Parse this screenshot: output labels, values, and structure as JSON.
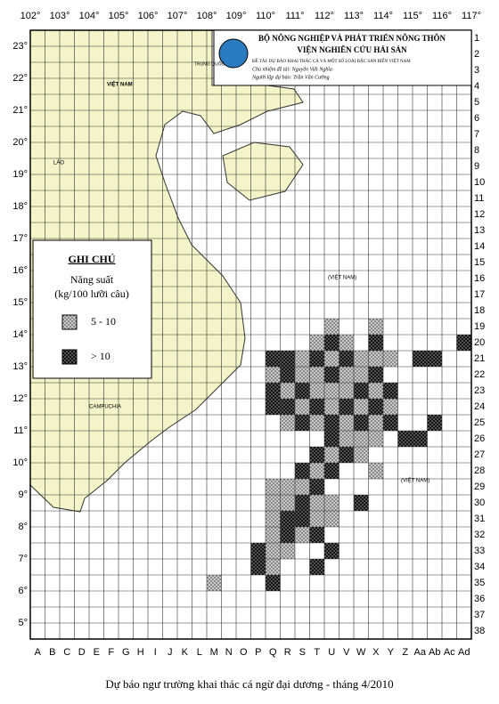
{
  "header": {
    "ministry": "BỘ NÔNG NGHIỆP VÀ PHÁT TRIỂN NÔNG THÔN",
    "institute": "VIỆN NGHIÊN CỨU HẢI SẢN",
    "project": "ĐỀ TÀI: DỰ BÁO KHAI THÁC CÁ VÀ MỘT SỐ LOÀI ĐẶC SẢN BIỂN VIỆT NAM",
    "leader": "Chủ nhiệm đề tài: Nguyễn Viết Nghĩa",
    "author": "Người lập dự báo: Trần Văn Cường"
  },
  "longitudes": [
    "102°",
    "103°",
    "104°",
    "105°",
    "106°",
    "107°",
    "108°",
    "109°",
    "110°",
    "111°",
    "112°",
    "113°",
    "114°",
    "115°",
    "116°",
    "117°"
  ],
  "latitudes": [
    "23°",
    "22°",
    "21°",
    "20°",
    "19°",
    "18°",
    "17°",
    "16°",
    "15°",
    "14°",
    "13°",
    "12°",
    "11°",
    "10°",
    "9°",
    "8°",
    "7°",
    "6°",
    "5°"
  ],
  "columns": [
    "A",
    "B",
    "C",
    "D",
    "E",
    "F",
    "G",
    "H",
    "I",
    "J",
    "K",
    "L",
    "M",
    "N",
    "O",
    "P",
    "Q",
    "R",
    "S",
    "T",
    "U",
    "V",
    "W",
    "X",
    "Y",
    "Z",
    "Aa",
    "Ab",
    "Ac",
    "Ad"
  ],
  "rows": [
    "1",
    "2",
    "3",
    "4",
    "5",
    "6",
    "7",
    "8",
    "9",
    "10",
    "11",
    "12",
    "13",
    "14",
    "15",
    "16",
    "17",
    "18",
    "19",
    "20",
    "21",
    "22",
    "23",
    "24",
    "25",
    "26",
    "27",
    "28",
    "29",
    "30",
    "31",
    "32",
    "33",
    "34",
    "35",
    "36",
    "37",
    "38"
  ],
  "places": [
    "TRUNG QUỐC",
    "VIỆT NAM",
    "LÀO",
    "CAMPUCHIA",
    "(VIỆT NAM)",
    "(VIỆT NAM)"
  ],
  "legend": {
    "title": "GHI CHÚ",
    "subtitle": "Năng suất",
    "unit": "(kg/100 lưỡi câu)",
    "items": [
      "5 - 10",
      "> 10"
    ]
  },
  "cells": {
    "19": "U:0 X:0",
    "20": "T:0 U:1 V:0 X:1 Ad:1",
    "21": "Q:1 R:1 S:0 T:1 U:0 V:1 W:0 X:0 Y:0 Aa:1 Ab:1",
    "22": "Q:0 R:1 S:0 T:0 U:1 V:0 W:0 X:1",
    "23": "Q:1 R:0 S:1 T:0 U:0 V:0 W:1 X:0 Y:1",
    "24": "Q:1 R:1 S:0 T:1 U:0 V:1 W:0 X:1 Y:0",
    "25": "R:0 S:1 T:0 U:1 V:0 W:1 X:0 Y:1 Ab:1",
    "26": "U:1 V:0 W:0 X:0 Z:1 Aa:1",
    "27": "T:1 U:0 V:1 W:0",
    "28": "S:1 T:0 U:1 X:0",
    "29": "Q:0 R:0 S:0 T:1",
    "30": "Q:0 R:0 S:1 T:0 U:0 W:1",
    "31": "Q:0 R:1 S:1 T:0 U:0",
    "32": "Q:0 R:1 S:0 T:1",
    "33": "P:1 Q:0 R:0 U:1",
    "34": "P:1 Q:0 T:1",
    "35": "M:0 Q:1"
  },
  "caption": "Dự báo ngư trường khai thác cá ngừ đại dương - tháng 4/2010"
}
